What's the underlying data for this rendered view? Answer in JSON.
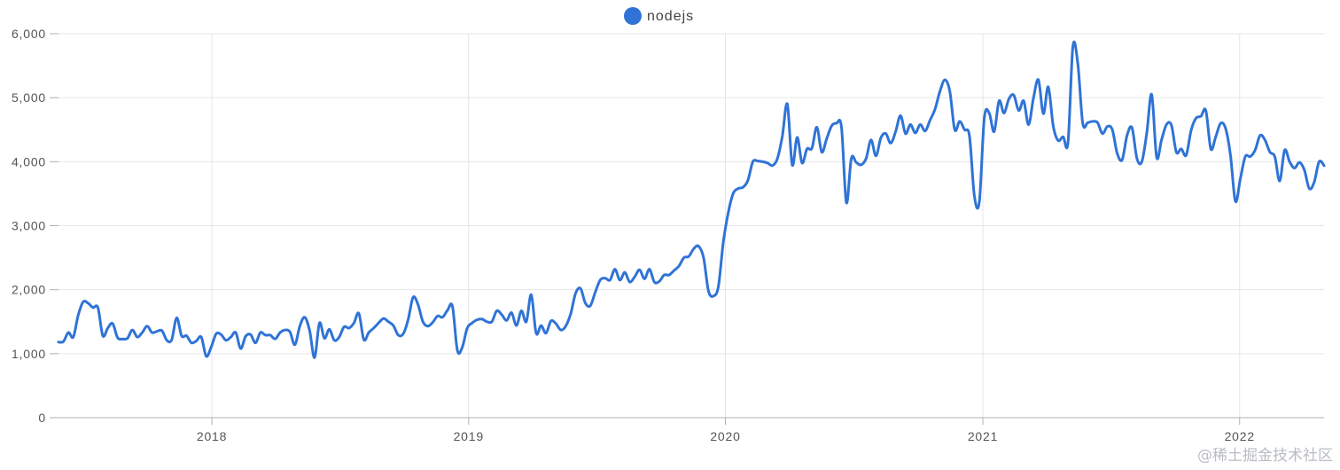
{
  "colors": {
    "series": "#2f73d6",
    "grid": "#e6e6e6",
    "axis": "#b0b0b0",
    "tick_text": "#555555"
  },
  "watermark": "@稀土掘金技术社区",
  "chart_data": {
    "type": "line",
    "title": "",
    "xlabel": "",
    "ylabel": "",
    "ylim": [
      0,
      6000
    ],
    "xlim": [
      "2017-05-28",
      "2022-05-01"
    ],
    "y_ticks": [
      0,
      1000,
      2000,
      3000,
      4000,
      5000,
      6000
    ],
    "y_tick_labels": [
      "0",
      "1,000",
      "2,000",
      "3,000",
      "4,000",
      "5,000",
      "6,000"
    ],
    "x_ticks": [
      "2018-01-01",
      "2019-01-01",
      "2020-01-01",
      "2021-01-01",
      "2022-01-01"
    ],
    "x_tick_labels": [
      "2018",
      "2019",
      "2020",
      "2021",
      "2022"
    ],
    "grid": true,
    "legend_position": "top-center",
    "series": [
      {
        "name": "nodejs",
        "points": [
          [
            "2017-05-28",
            1180
          ],
          [
            "2017-06-04",
            1190
          ],
          [
            "2017-06-11",
            1330
          ],
          [
            "2017-06-18",
            1260
          ],
          [
            "2017-06-25",
            1600
          ],
          [
            "2017-07-02",
            1810
          ],
          [
            "2017-07-09",
            1790
          ],
          [
            "2017-07-16",
            1720
          ],
          [
            "2017-07-23",
            1720
          ],
          [
            "2017-07-30",
            1280
          ],
          [
            "2017-08-06",
            1400
          ],
          [
            "2017-08-13",
            1470
          ],
          [
            "2017-08-20",
            1250
          ],
          [
            "2017-08-27",
            1230
          ],
          [
            "2017-09-03",
            1240
          ],
          [
            "2017-09-10",
            1370
          ],
          [
            "2017-09-17",
            1260
          ],
          [
            "2017-09-24",
            1330
          ],
          [
            "2017-10-01",
            1430
          ],
          [
            "2017-10-08",
            1330
          ],
          [
            "2017-10-15",
            1350
          ],
          [
            "2017-10-22",
            1360
          ],
          [
            "2017-10-29",
            1210
          ],
          [
            "2017-11-05",
            1220
          ],
          [
            "2017-11-12",
            1560
          ],
          [
            "2017-11-19",
            1280
          ],
          [
            "2017-11-26",
            1280
          ],
          [
            "2017-12-03",
            1170
          ],
          [
            "2017-12-10",
            1200
          ],
          [
            "2017-12-17",
            1260
          ],
          [
            "2017-12-24",
            960
          ],
          [
            "2017-12-31",
            1100
          ],
          [
            "2018-01-07",
            1310
          ],
          [
            "2018-01-14",
            1300
          ],
          [
            "2018-01-21",
            1210
          ],
          [
            "2018-01-28",
            1260
          ],
          [
            "2018-02-04",
            1330
          ],
          [
            "2018-02-11",
            1080
          ],
          [
            "2018-02-18",
            1270
          ],
          [
            "2018-02-25",
            1300
          ],
          [
            "2018-03-04",
            1170
          ],
          [
            "2018-03-11",
            1330
          ],
          [
            "2018-03-18",
            1290
          ],
          [
            "2018-03-25",
            1290
          ],
          [
            "2018-04-01",
            1230
          ],
          [
            "2018-04-08",
            1330
          ],
          [
            "2018-04-15",
            1370
          ],
          [
            "2018-04-22",
            1340
          ],
          [
            "2018-04-29",
            1140
          ],
          [
            "2018-05-06",
            1430
          ],
          [
            "2018-05-13",
            1570
          ],
          [
            "2018-05-20",
            1360
          ],
          [
            "2018-05-27",
            940
          ],
          [
            "2018-06-03",
            1480
          ],
          [
            "2018-06-10",
            1240
          ],
          [
            "2018-06-17",
            1380
          ],
          [
            "2018-06-24",
            1210
          ],
          [
            "2018-07-01",
            1260
          ],
          [
            "2018-07-08",
            1420
          ],
          [
            "2018-07-15",
            1400
          ],
          [
            "2018-07-22",
            1480
          ],
          [
            "2018-07-29",
            1630
          ],
          [
            "2018-08-05",
            1220
          ],
          [
            "2018-08-12",
            1330
          ],
          [
            "2018-08-19",
            1400
          ],
          [
            "2018-08-26",
            1480
          ],
          [
            "2018-09-02",
            1550
          ],
          [
            "2018-09-09",
            1500
          ],
          [
            "2018-09-16",
            1440
          ],
          [
            "2018-09-23",
            1290
          ],
          [
            "2018-09-30",
            1310
          ],
          [
            "2018-10-07",
            1530
          ],
          [
            "2018-10-14",
            1880
          ],
          [
            "2018-10-21",
            1770
          ],
          [
            "2018-10-28",
            1500
          ],
          [
            "2018-11-04",
            1430
          ],
          [
            "2018-11-11",
            1490
          ],
          [
            "2018-11-18",
            1590
          ],
          [
            "2018-11-25",
            1570
          ],
          [
            "2018-12-02",
            1680
          ],
          [
            "2018-12-09",
            1740
          ],
          [
            "2018-12-16",
            1050
          ],
          [
            "2018-12-23",
            1100
          ],
          [
            "2018-12-30",
            1400
          ],
          [
            "2019-01-06",
            1480
          ],
          [
            "2019-01-13",
            1530
          ],
          [
            "2019-01-20",
            1540
          ],
          [
            "2019-01-27",
            1500
          ],
          [
            "2019-02-03",
            1500
          ],
          [
            "2019-02-10",
            1670
          ],
          [
            "2019-02-17",
            1610
          ],
          [
            "2019-02-24",
            1520
          ],
          [
            "2019-03-03",
            1640
          ],
          [
            "2019-03-10",
            1440
          ],
          [
            "2019-03-17",
            1670
          ],
          [
            "2019-03-24",
            1500
          ],
          [
            "2019-03-31",
            1920
          ],
          [
            "2019-04-07",
            1320
          ],
          [
            "2019-04-14",
            1440
          ],
          [
            "2019-04-21",
            1320
          ],
          [
            "2019-04-28",
            1510
          ],
          [
            "2019-05-05",
            1470
          ],
          [
            "2019-05-12",
            1370
          ],
          [
            "2019-05-19",
            1430
          ],
          [
            "2019-05-26",
            1620
          ],
          [
            "2019-06-02",
            1940
          ],
          [
            "2019-06-09",
            2020
          ],
          [
            "2019-06-16",
            1790
          ],
          [
            "2019-06-23",
            1750
          ],
          [
            "2019-06-30",
            1960
          ],
          [
            "2019-07-07",
            2150
          ],
          [
            "2019-07-14",
            2180
          ],
          [
            "2019-07-21",
            2150
          ],
          [
            "2019-07-28",
            2320
          ],
          [
            "2019-08-04",
            2150
          ],
          [
            "2019-08-11",
            2270
          ],
          [
            "2019-08-18",
            2120
          ],
          [
            "2019-08-25",
            2200
          ],
          [
            "2019-09-01",
            2310
          ],
          [
            "2019-09-08",
            2170
          ],
          [
            "2019-09-15",
            2320
          ],
          [
            "2019-09-22",
            2120
          ],
          [
            "2019-09-29",
            2130
          ],
          [
            "2019-10-06",
            2230
          ],
          [
            "2019-10-13",
            2230
          ],
          [
            "2019-10-20",
            2300
          ],
          [
            "2019-10-27",
            2370
          ],
          [
            "2019-11-03",
            2500
          ],
          [
            "2019-11-10",
            2520
          ],
          [
            "2019-11-17",
            2640
          ],
          [
            "2019-11-24",
            2680
          ],
          [
            "2019-12-01",
            2500
          ],
          [
            "2019-12-08",
            1980
          ],
          [
            "2019-12-15",
            1900
          ],
          [
            "2019-12-22",
            2050
          ],
          [
            "2019-12-29",
            2740
          ],
          [
            "2020-01-05",
            3200
          ],
          [
            "2020-01-12",
            3500
          ],
          [
            "2020-01-19",
            3580
          ],
          [
            "2020-01-26",
            3600
          ],
          [
            "2020-02-02",
            3710
          ],
          [
            "2020-02-09",
            4000
          ],
          [
            "2020-02-16",
            4010
          ],
          [
            "2020-02-23",
            4000
          ],
          [
            "2020-03-01",
            3980
          ],
          [
            "2020-03-08",
            3940
          ],
          [
            "2020-03-15",
            4050
          ],
          [
            "2020-03-22",
            4400
          ],
          [
            "2020-03-29",
            4900
          ],
          [
            "2020-04-05",
            3950
          ],
          [
            "2020-04-12",
            4380
          ],
          [
            "2020-04-19",
            3980
          ],
          [
            "2020-04-26",
            4200
          ],
          [
            "2020-05-03",
            4210
          ],
          [
            "2020-05-10",
            4540
          ],
          [
            "2020-05-17",
            4150
          ],
          [
            "2020-05-24",
            4360
          ],
          [
            "2020-05-31",
            4560
          ],
          [
            "2020-06-07",
            4600
          ],
          [
            "2020-06-14",
            4540
          ],
          [
            "2020-06-21",
            3360
          ],
          [
            "2020-06-28",
            4050
          ],
          [
            "2020-07-05",
            3990
          ],
          [
            "2020-07-12",
            3950
          ],
          [
            "2020-07-19",
            4050
          ],
          [
            "2020-07-26",
            4340
          ],
          [
            "2020-08-02",
            4090
          ],
          [
            "2020-08-09",
            4370
          ],
          [
            "2020-08-16",
            4440
          ],
          [
            "2020-08-23",
            4290
          ],
          [
            "2020-08-30",
            4470
          ],
          [
            "2020-09-06",
            4720
          ],
          [
            "2020-09-13",
            4440
          ],
          [
            "2020-09-20",
            4580
          ],
          [
            "2020-09-27",
            4450
          ],
          [
            "2020-10-04",
            4580
          ],
          [
            "2020-10-11",
            4480
          ],
          [
            "2020-10-18",
            4650
          ],
          [
            "2020-10-25",
            4820
          ],
          [
            "2020-11-01",
            5100
          ],
          [
            "2020-11-08",
            5280
          ],
          [
            "2020-11-15",
            5100
          ],
          [
            "2020-11-22",
            4500
          ],
          [
            "2020-11-29",
            4630
          ],
          [
            "2020-12-06",
            4500
          ],
          [
            "2020-12-13",
            4400
          ],
          [
            "2020-12-20",
            3460
          ],
          [
            "2020-12-27",
            3380
          ],
          [
            "2021-01-03",
            4680
          ],
          [
            "2021-01-10",
            4760
          ],
          [
            "2021-01-17",
            4470
          ],
          [
            "2021-01-24",
            4950
          ],
          [
            "2021-01-31",
            4760
          ],
          [
            "2021-02-07",
            4980
          ],
          [
            "2021-02-14",
            5040
          ],
          [
            "2021-02-21",
            4800
          ],
          [
            "2021-02-28",
            4950
          ],
          [
            "2021-03-07",
            4580
          ],
          [
            "2021-03-14",
            5000
          ],
          [
            "2021-03-21",
            5280
          ],
          [
            "2021-03-28",
            4750
          ],
          [
            "2021-04-04",
            5170
          ],
          [
            "2021-04-11",
            4560
          ],
          [
            "2021-04-18",
            4330
          ],
          [
            "2021-04-25",
            4390
          ],
          [
            "2021-05-02",
            4300
          ],
          [
            "2021-05-09",
            5800
          ],
          [
            "2021-05-16",
            5530
          ],
          [
            "2021-05-23",
            4600
          ],
          [
            "2021-05-30",
            4610
          ],
          [
            "2021-06-06",
            4630
          ],
          [
            "2021-06-13",
            4610
          ],
          [
            "2021-06-20",
            4440
          ],
          [
            "2021-06-27",
            4550
          ],
          [
            "2021-07-04",
            4500
          ],
          [
            "2021-07-11",
            4130
          ],
          [
            "2021-07-18",
            4030
          ],
          [
            "2021-07-25",
            4410
          ],
          [
            "2021-08-01",
            4530
          ],
          [
            "2021-08-08",
            4050
          ],
          [
            "2021-08-15",
            4000
          ],
          [
            "2021-08-22",
            4450
          ],
          [
            "2021-08-29",
            5050
          ],
          [
            "2021-09-05",
            4070
          ],
          [
            "2021-09-12",
            4340
          ],
          [
            "2021-09-19",
            4580
          ],
          [
            "2021-09-26",
            4570
          ],
          [
            "2021-10-03",
            4150
          ],
          [
            "2021-10-10",
            4200
          ],
          [
            "2021-10-17",
            4100
          ],
          [
            "2021-10-24",
            4490
          ],
          [
            "2021-10-31",
            4680
          ],
          [
            "2021-11-07",
            4710
          ],
          [
            "2021-11-14",
            4800
          ],
          [
            "2021-11-21",
            4200
          ],
          [
            "2021-11-28",
            4390
          ],
          [
            "2021-12-05",
            4600
          ],
          [
            "2021-12-12",
            4520
          ],
          [
            "2021-12-19",
            4100
          ],
          [
            "2021-12-26",
            3380
          ],
          [
            "2022-01-02",
            3730
          ],
          [
            "2022-01-09",
            4080
          ],
          [
            "2022-01-16",
            4080
          ],
          [
            "2022-01-23",
            4180
          ],
          [
            "2022-01-30",
            4410
          ],
          [
            "2022-02-06",
            4340
          ],
          [
            "2022-02-13",
            4150
          ],
          [
            "2022-02-20",
            4080
          ],
          [
            "2022-02-27",
            3700
          ],
          [
            "2022-03-06",
            4180
          ],
          [
            "2022-03-13",
            4000
          ],
          [
            "2022-03-20",
            3900
          ],
          [
            "2022-03-27",
            3990
          ],
          [
            "2022-04-03",
            3870
          ],
          [
            "2022-04-10",
            3580
          ],
          [
            "2022-04-17",
            3680
          ],
          [
            "2022-04-24",
            4000
          ],
          [
            "2022-05-01",
            3940
          ]
        ]
      }
    ]
  }
}
